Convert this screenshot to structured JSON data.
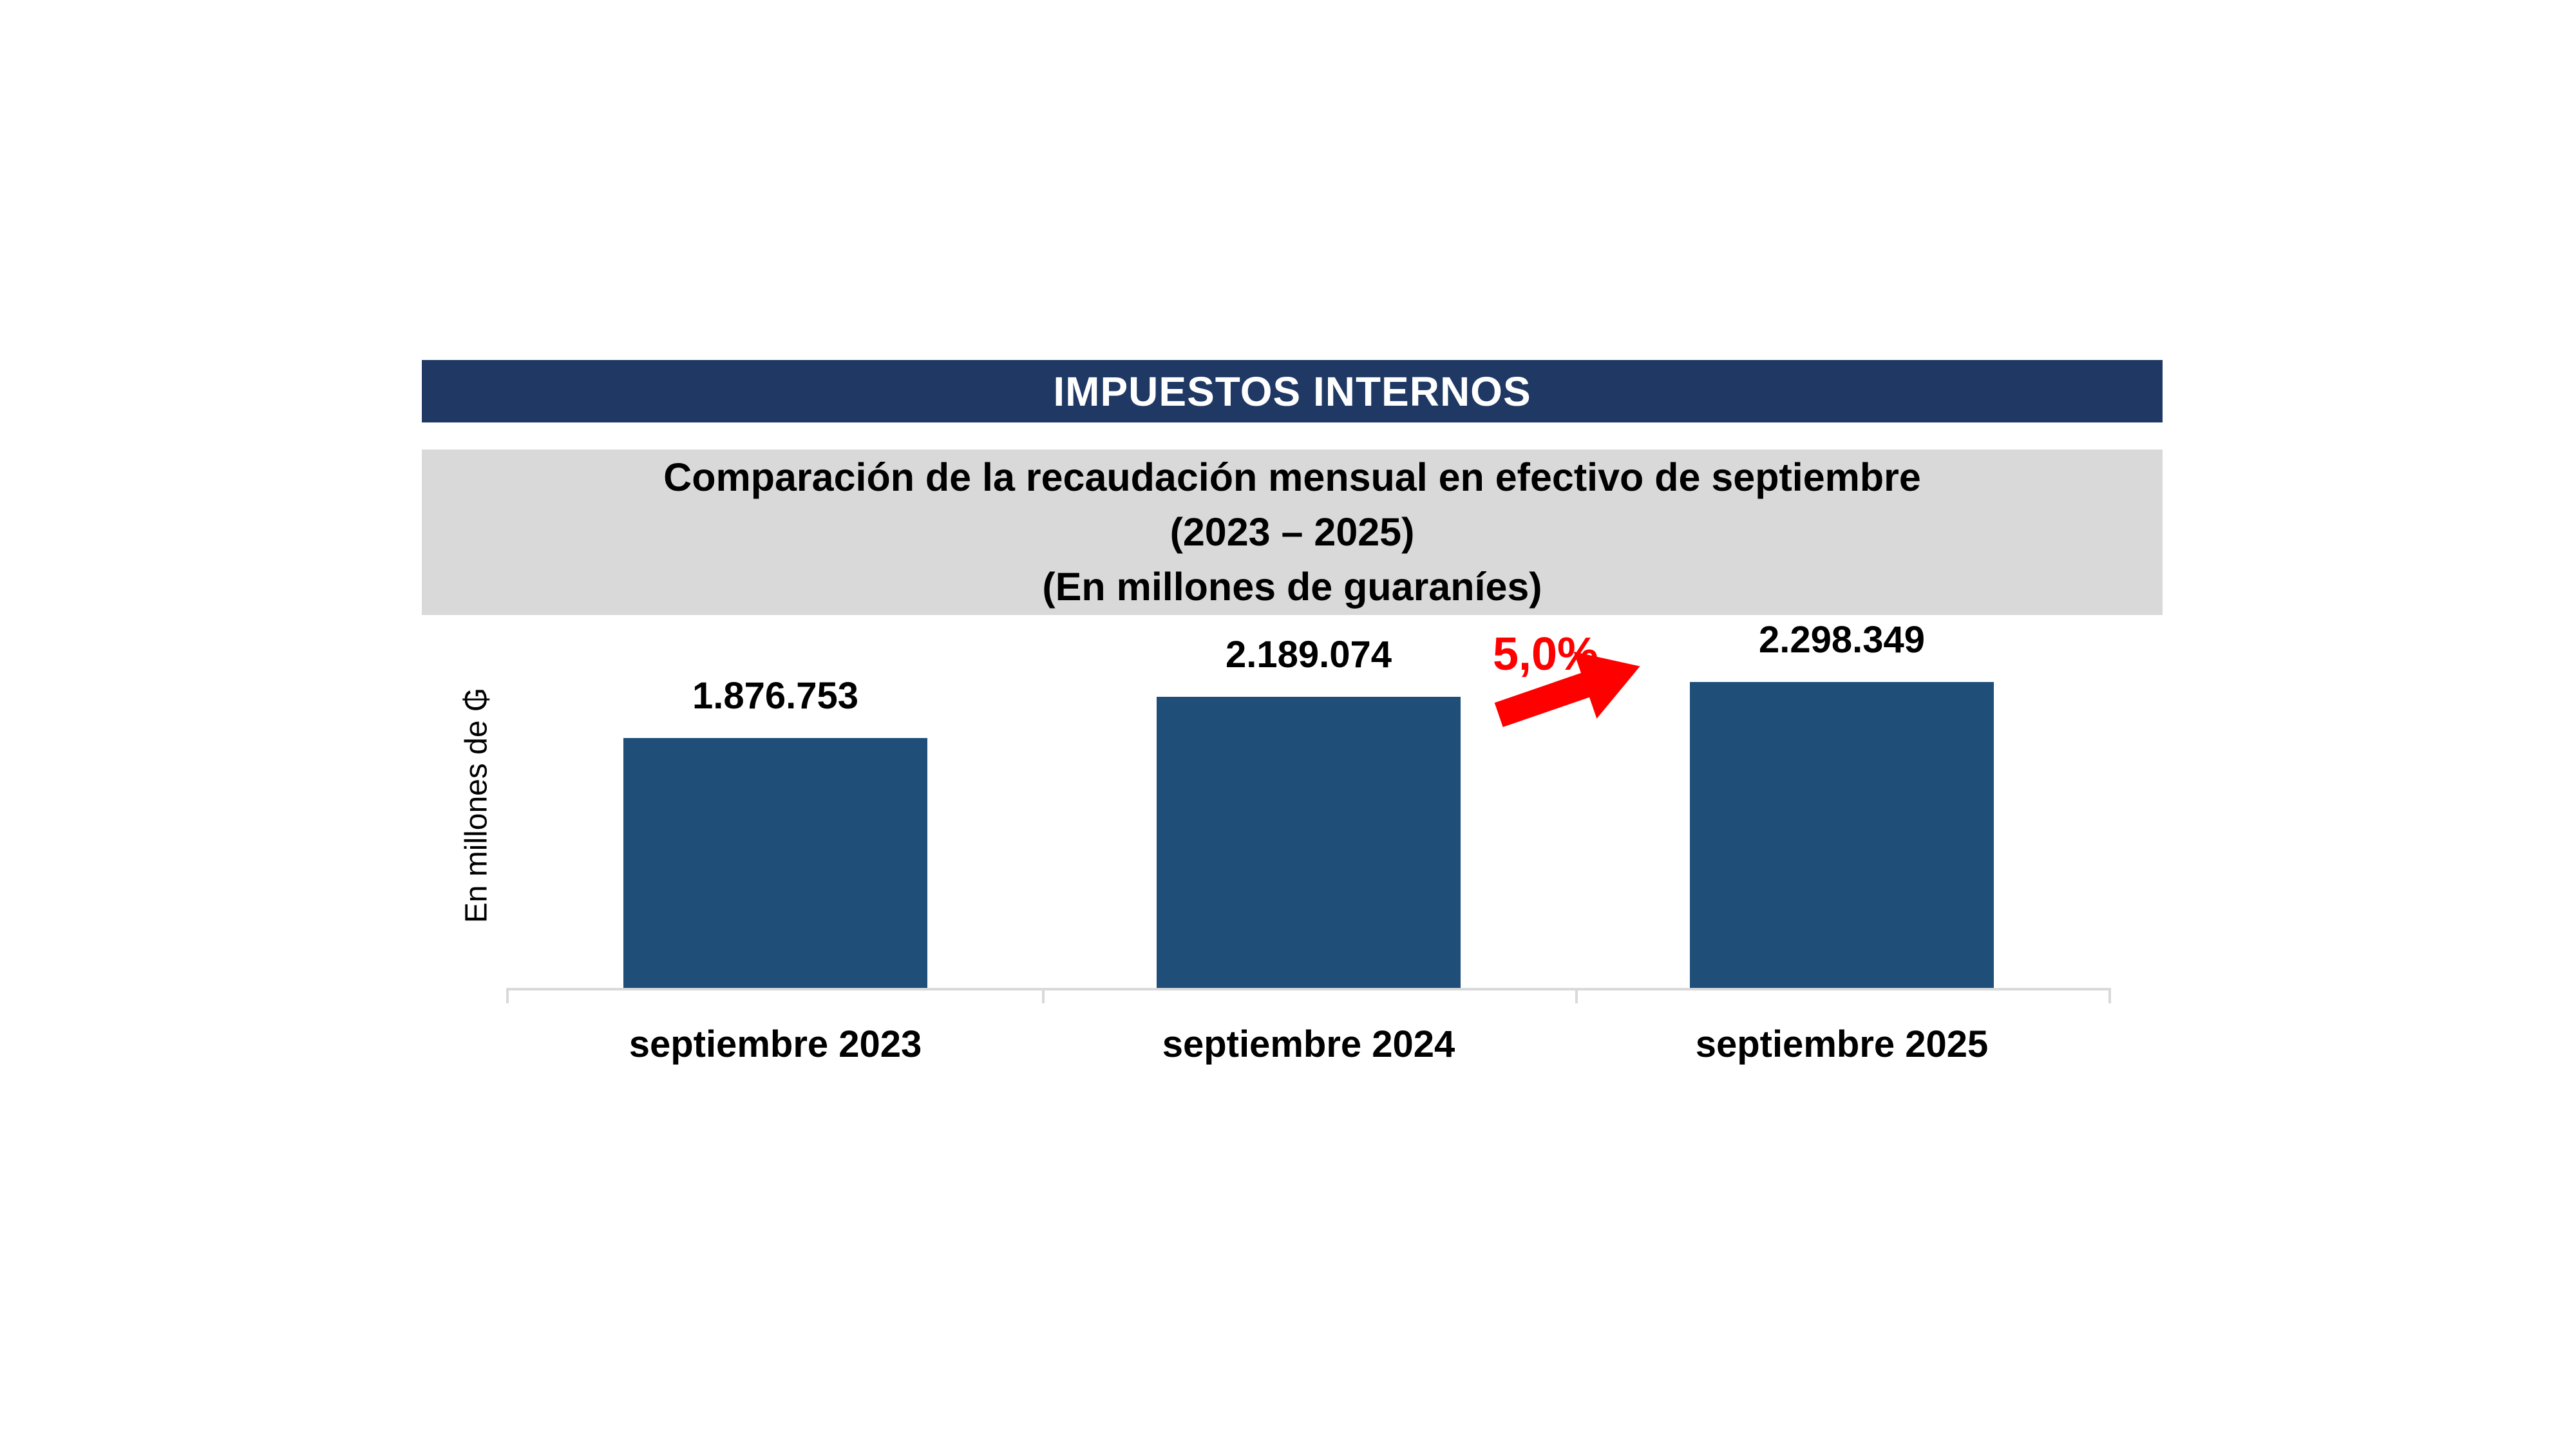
{
  "header": {
    "title": "IMPUESTOS INTERNOS"
  },
  "subtitle": {
    "lines": [
      "Comparación de la recaudación mensual en efectivo de septiembre",
      "(2023 – 2025)",
      "(En millones de guaraníes)"
    ]
  },
  "chart_data": {
    "type": "bar",
    "title": "Comparación de la recaudación mensual en efectivo de septiembre (2023 – 2025) (En millones de guaraníes)",
    "categories": [
      "septiembre 2023",
      "septiembre 2024",
      "septiembre 2025"
    ],
    "values": [
      1876753,
      2189074,
      2298349
    ],
    "value_labels": [
      "1.876.753",
      "2.189.074",
      "2.298.349"
    ],
    "xlabel": "",
    "ylabel": "En millones de ₲",
    "ylim": [
      0,
      2400000
    ],
    "grid": false,
    "legend": false,
    "annotation": {
      "text": "5,0%",
      "between": [
        "septiembre 2024",
        "septiembre 2025"
      ]
    }
  },
  "colors": {
    "banner_bg": "#1F3864",
    "banner_text": "#FFFFFF",
    "subtitle_bg": "#D9D9D9",
    "bar": "#1F4E79",
    "annotation": "#FF0000",
    "axis_line": "#D9D9D9",
    "text": "#000000"
  }
}
